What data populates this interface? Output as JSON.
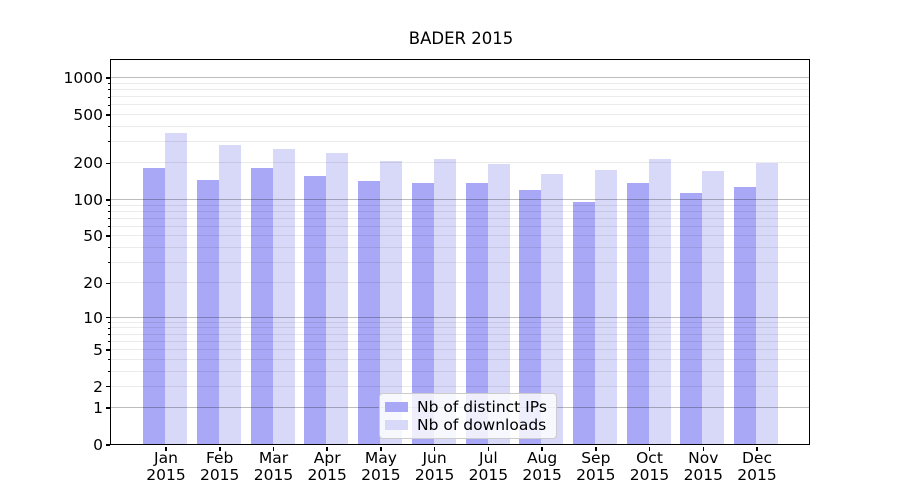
{
  "chart_data": {
    "type": "bar",
    "title": "BADER 2015",
    "categories": [
      "Jan 2015",
      "Feb 2015",
      "Mar 2015",
      "Apr 2015",
      "May 2015",
      "Jun 2015",
      "Jul 2015",
      "Aug 2015",
      "Sep 2015",
      "Oct 2015",
      "Nov 2015",
      "Dec 2015"
    ],
    "series": [
      {
        "name": "Nb of distinct IPs",
        "color": "#a8a8f6",
        "values": [
          180,
          145,
          180,
          155,
          140,
          135,
          135,
          120,
          95,
          135,
          112,
          125
        ]
      },
      {
        "name": "Nb of downloads",
        "color": "#d8d8f8",
        "values": [
          350,
          280,
          260,
          240,
          205,
          215,
          195,
          160,
          175,
          215,
          172,
          200
        ]
      }
    ],
    "y_axis": {
      "scale": "log1p",
      "tick_values": [
        0,
        1,
        2,
        5,
        10,
        20,
        50,
        100,
        200,
        500,
        1000
      ],
      "tick_labels": [
        "0",
        "1",
        "2",
        "5",
        "10",
        "20",
        "50",
        "100",
        "200",
        "500",
        "1000"
      ],
      "major_grid_values": [
        1,
        10,
        100,
        1000
      ],
      "minor_grid_values": [
        2,
        3,
        4,
        5,
        6,
        7,
        8,
        9,
        20,
        30,
        40,
        50,
        60,
        70,
        80,
        90,
        200,
        300,
        400,
        500,
        600,
        700,
        800,
        900
      ],
      "ylim": [
        0,
        1380
      ]
    },
    "xlabel": "",
    "ylabel": "",
    "grid": true,
    "legend_position": "lower center"
  },
  "colors": {
    "bar_distinct_ips": "#a8a8f6",
    "bar_downloads": "#d8d8f8",
    "major_grid": "#bdbdbd",
    "minor_grid": "#ebebeb",
    "spine": "#000000",
    "legend_border": "#cccccc"
  }
}
